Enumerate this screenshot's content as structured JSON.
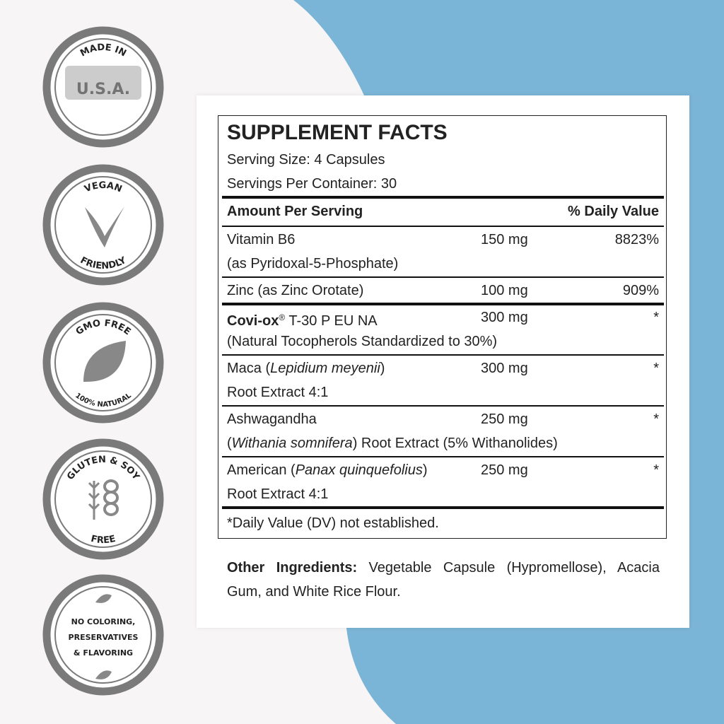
{
  "badges": [
    {
      "top": "MADE IN",
      "center": [
        "U.S.A."
      ]
    },
    {
      "top": "VEGAN",
      "bottom": "FRIENDLY"
    },
    {
      "top": "GMO FREE",
      "bottom": "100% NATURAL"
    },
    {
      "top": "GLUTEN & SOY",
      "bottom": "FREE"
    },
    {
      "center": [
        "NO COLORING,",
        "PRESERVATIVES",
        "& FLAVORING"
      ]
    }
  ],
  "facts": {
    "title": "SUPPLEMENT FACTS",
    "serving_size": "Serving Size: 4 Capsules",
    "servings_per_container": "Servings Per Container: 30",
    "header": {
      "amount": "Amount Per Serving",
      "dv": "% Daily Value"
    },
    "rows": [
      {
        "name": [
          [
            {
              "text": "Vitamin B6",
              "style": "normal"
            }
          ],
          [
            {
              "text": "(as Pyridoxal-5-Phosphate)",
              "style": "normal"
            }
          ]
        ],
        "amount": "150 mg",
        "dv": "8823%",
        "rule": "thin"
      },
      {
        "name": [
          [
            {
              "text": "Zinc (as Zinc Orotate)",
              "style": "normal"
            }
          ]
        ],
        "amount": "100 mg",
        "dv": "909%",
        "rule": "thick"
      },
      {
        "name": [
          [
            {
              "text": "Covi-ox",
              "style": "bold"
            },
            {
              "text": "®",
              "style": "sup"
            },
            {
              "text": " T-30 P EU NA",
              "style": "normal"
            }
          ],
          [
            {
              "text": "(Natural Tocopherols Standardized to 30%)",
              "style": "normal"
            }
          ]
        ],
        "amount": "300 mg",
        "dv": "*",
        "rule": "thin"
      },
      {
        "name": [
          [
            {
              "text": "Maca (",
              "style": "normal"
            },
            {
              "text": "Lepidium meyenii",
              "style": "italic"
            },
            {
              "text": ")",
              "style": "normal"
            }
          ],
          [
            {
              "text": "Root Extract 4:1",
              "style": "normal"
            }
          ]
        ],
        "amount": "300 mg",
        "dv": "*",
        "rule": "thin"
      },
      {
        "name": [
          [
            {
              "text": "Ashwagandha",
              "style": "normal"
            }
          ],
          [
            {
              "text": "(",
              "style": "normal"
            },
            {
              "text": "Withania somnifera",
              "style": "italic"
            },
            {
              "text": ") Root Extract (5% Withanolides)",
              "style": "normal"
            }
          ]
        ],
        "amount": "250 mg",
        "dv": "*",
        "rule": "thin"
      },
      {
        "name": [
          [
            {
              "text": "American (",
              "style": "normal"
            },
            {
              "text": "Panax quinquefolius",
              "style": "italic"
            },
            {
              "text": ")",
              "style": "normal"
            }
          ],
          [
            {
              "text": "Root Extract 4:1",
              "style": "normal"
            }
          ]
        ],
        "amount": "250 mg",
        "dv": "*",
        "rule": "thick"
      }
    ],
    "footnote": "*Daily Value (DV) not established.",
    "other_label": "Other Ingredients:",
    "other_text": " Vegetable Capsule (Hypromellose), Acacia Gum, and White Rice Flour."
  }
}
